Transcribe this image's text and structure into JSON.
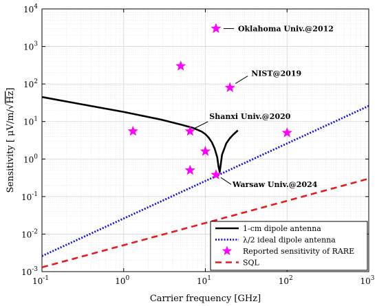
{
  "chart_data": {
    "type": "line",
    "xlabel": "Carrier frequency [GHz]",
    "ylabel": "Sensitivity [ μV/m/√Hz]",
    "ylabel_prefix": "Sensitivity [ μV/m/",
    "ylabel_root": "√",
    "ylabel_hz": "Hz",
    "ylabel_suffix": "]",
    "xscale": "log",
    "yscale": "log",
    "xlim": [
      0.1,
      1000
    ],
    "ylim": [
      0.001,
      10000
    ],
    "grid": true,
    "legend_position": "bottom-right",
    "x_ticks": [
      {
        "base": "10",
        "exp": "-1"
      },
      {
        "base": "10",
        "exp": "0"
      },
      {
        "base": "10",
        "exp": "1"
      },
      {
        "base": "10",
        "exp": "2"
      },
      {
        "base": "10",
        "exp": "3"
      }
    ],
    "y_ticks": [
      {
        "base": "10",
        "exp": "-3"
      },
      {
        "base": "10",
        "exp": "-2"
      },
      {
        "base": "10",
        "exp": "-1"
      },
      {
        "base": "10",
        "exp": "0"
      },
      {
        "base": "10",
        "exp": "1"
      },
      {
        "base": "10",
        "exp": "2"
      },
      {
        "base": "10",
        "exp": "3"
      },
      {
        "base": "10",
        "exp": "4"
      }
    ],
    "series": [
      {
        "name": "1-cm dipole antenna",
        "color": "#000000",
        "style": "solid",
        "x": [
          0.1,
          0.3,
          1,
          3,
          5,
          7,
          9,
          10,
          11,
          12,
          13,
          14,
          14.5,
          15,
          16,
          18,
          20,
          22,
          25
        ],
        "y": [
          45,
          29,
          18,
          11,
          8.3,
          6.8,
          5.4,
          4.6,
          3.7,
          2.8,
          1.9,
          1.1,
          0.62,
          0.45,
          1.3,
          2.6,
          3.6,
          4.5,
          5.8
        ]
      },
      {
        "name": "λ/2 ideal dipole antenna",
        "color": "#1010e0",
        "style": "dotted",
        "x": [
          0.1,
          1000
        ],
        "y": [
          0.0026,
          26
        ]
      },
      {
        "name": "Reported sensitivity of RARE",
        "color": "#ff00ff",
        "style": "markers",
        "x": [
          1.3,
          5,
          6.5,
          6.5,
          10,
          13.5,
          13.5,
          20,
          100
        ],
        "y": [
          5.5,
          300,
          5.5,
          0.5,
          1.6,
          0.38,
          3000,
          80,
          5
        ]
      },
      {
        "name": "SQL",
        "color": "#e8191c",
        "style": "dashed",
        "x": [
          0.1,
          1000
        ],
        "y": [
          0.0013,
          0.3
        ]
      }
    ],
    "annotations": [
      {
        "text": "Oklahoma Univ.@2012",
        "x": 13.5,
        "y": 3000
      },
      {
        "text": "NIST@2019",
        "x": 20,
        "y": 80
      },
      {
        "text": "Shanxi Univ.@2020",
        "x": 6.5,
        "y": 5.5
      },
      {
        "text": "Warsaw Univ.@2024",
        "x": 13.5,
        "y": 0.38
      }
    ]
  }
}
